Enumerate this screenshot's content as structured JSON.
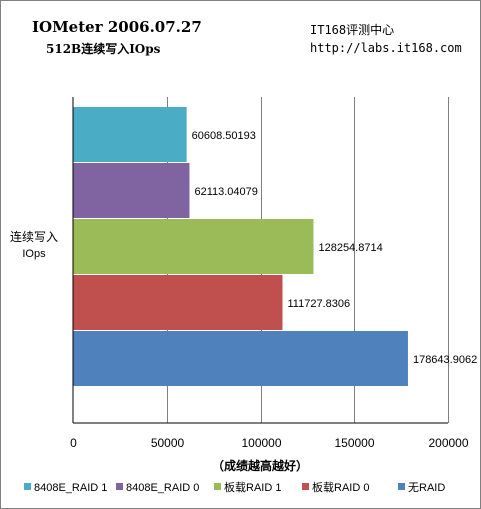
{
  "header": {
    "title": "IOMeter 2006.07.27",
    "subtitle": "512B连续写入IOps",
    "source": "IT168评测中心",
    "url": "http://labs.it168.com"
  },
  "chart_data": {
    "type": "bar",
    "orientation": "horizontal",
    "categories": [
      "连续写入 IOps"
    ],
    "category_label_lines": [
      "连续写入",
      "IOps"
    ],
    "xlabel": "（成绩越高越好）",
    "ylabel": "",
    "xlim": [
      0,
      200000
    ],
    "xticks": [
      0,
      50000,
      100000,
      150000,
      200000
    ],
    "grid": true,
    "legend_position": "bottom",
    "series": [
      {
        "name": "8408E_RAID 1",
        "values": [
          60608.50193
        ],
        "label": "60608.50193",
        "color": "#4bacc6"
      },
      {
        "name": "8408E_RAID 0",
        "values": [
          62113.04079
        ],
        "label": "62113.04079",
        "color": "#8064a2"
      },
      {
        "name": "板载RAID 1",
        "values": [
          128254.8714
        ],
        "label": "128254.8714",
        "color": "#9bbb59"
      },
      {
        "name": "板载RAID 0",
        "values": [
          111727.8306
        ],
        "label": "111727.8306",
        "color": "#c0504d"
      },
      {
        "name": "无RAID",
        "values": [
          178643.9062
        ],
        "label": "178643.9062",
        "color": "#4f81bd"
      }
    ]
  }
}
